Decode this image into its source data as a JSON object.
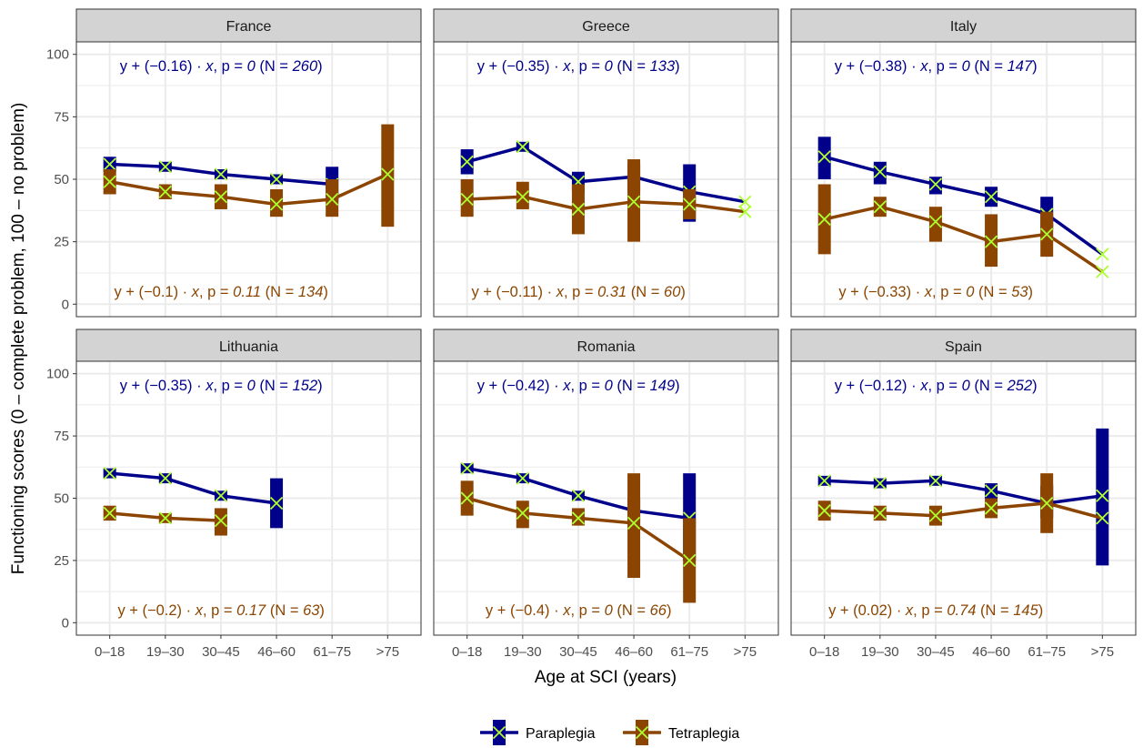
{
  "chart_data": {
    "type": "line",
    "xlabel": "Age at SCI (years)",
    "ylabel": "Functioning scores (0 – complete problem, 100 – no problem)",
    "categories": [
      "0–18",
      "19–30",
      "30–45",
      "46–60",
      "61–75",
      ">75"
    ],
    "ylim": [
      -5,
      105
    ],
    "yticks": [
      0,
      25,
      50,
      75,
      100
    ],
    "grid": true,
    "legend_position": "bottom",
    "legend": [
      {
        "key": "para",
        "label": "Paraplegia"
      },
      {
        "key": "tetra",
        "label": "Tetraplegia"
      }
    ],
    "colors": {
      "para": "#00008B",
      "tetra": "#8B4500",
      "marker": "#ADFF2F",
      "strip": "#D3D3D3",
      "grid": "#EBEBEB"
    },
    "panels": [
      {
        "title": "France",
        "series": [
          {
            "key": "para",
            "mean": [
              56,
              55,
              52,
              50,
              48,
              null
            ],
            "low": [
              53,
              53,
              50,
              48,
              41,
              null
            ],
            "high": [
              59,
              57,
              54,
              52,
              55,
              null
            ],
            "annotation": {
              "prefix": "y + (−0.16) · ",
              "x": "x",
              "p_text": ", p = ",
              "p": "0",
              "n_text": "  (N = ",
              "n": "260",
              "close": ")"
            }
          },
          {
            "key": "tetra",
            "mean": [
              49,
              45,
              43,
              40,
              42,
              52
            ],
            "low": [
              44,
              42,
              38,
              35,
              35,
              31
            ],
            "high": [
              54,
              48,
              48,
              46,
              50,
              72
            ],
            "annotation": {
              "prefix": "y + (−0.1) · ",
              "x": "x",
              "p_text": ", p = ",
              "p": "0.11",
              "n_text": "  (N = ",
              "n": "134",
              "close": ")"
            }
          }
        ]
      },
      {
        "title": "Greece",
        "series": [
          {
            "key": "para",
            "mean": [
              57,
              63,
              49,
              51,
              45,
              41
            ],
            "low": [
              52,
              61,
              45,
              45,
              33,
              null
            ],
            "high": [
              62,
              65,
              53,
              56,
              56,
              null
            ],
            "annotation": {
              "prefix": "y + (−0.35) · ",
              "x": "x",
              "p_text": ", p = ",
              "p": "0",
              "n_text": "  (N = ",
              "n": "133",
              "close": ")"
            }
          },
          {
            "key": "tetra",
            "mean": [
              42,
              43,
              38,
              41,
              40,
              37
            ],
            "low": [
              35,
              38,
              28,
              25,
              34,
              null
            ],
            "high": [
              50,
              49,
              48,
              58,
              46,
              null
            ],
            "annotation": {
              "prefix": "y + (−0.11) · ",
              "x": "x",
              "p_text": ", p = ",
              "p": "0.31",
              "n_text": "  (N = ",
              "n": "60",
              "close": ")"
            }
          }
        ]
      },
      {
        "title": "Italy",
        "series": [
          {
            "key": "para",
            "mean": [
              59,
              53,
              48,
              43,
              36,
              20
            ],
            "low": [
              50,
              48,
              44,
              39,
              30,
              null
            ],
            "high": [
              67,
              57,
              51,
              47,
              43,
              null
            ],
            "annotation": {
              "prefix": "y + (−0.38) · ",
              "x": "x",
              "p_text": ", p = ",
              "p": "0",
              "n_text": "  (N = ",
              "n": "147",
              "close": ")"
            }
          },
          {
            "key": "tetra",
            "mean": [
              34,
              39,
              33,
              25,
              28,
              13
            ],
            "low": [
              20,
              35,
              25,
              15,
              19,
              null
            ],
            "high": [
              48,
              43,
              39,
              36,
              37,
              null
            ],
            "annotation": {
              "prefix": "y + (−0.33) · ",
              "x": "x",
              "p_text": ", p = ",
              "p": "0",
              "n_text": "  (N = ",
              "n": "53",
              "close": ")"
            }
          }
        ]
      },
      {
        "title": "Lithuania",
        "series": [
          {
            "key": "para",
            "mean": [
              60,
              58,
              51,
              48,
              null,
              null
            ],
            "low": [
              58,
              56,
              49,
              38,
              null,
              null
            ],
            "high": [
              62,
              60,
              53,
              58,
              null,
              null
            ],
            "annotation": {
              "prefix": "y + (−0.35) · ",
              "x": "x",
              "p_text": ", p = ",
              "p": "0",
              "n_text": "  (N = ",
              "n": "152",
              "close": ")"
            }
          },
          {
            "key": "tetra",
            "mean": [
              44,
              42,
              41,
              null,
              null,
              null
            ],
            "low": [
              41,
              40,
              35,
              null,
              null,
              null
            ],
            "high": [
              47,
              44,
              46,
              null,
              null,
              null
            ],
            "annotation": {
              "prefix": "y + (−0.2) · ",
              "x": "x",
              "p_text": ", p = ",
              "p": "0.17",
              "n_text": "  (N = ",
              "n": "63",
              "close": ")"
            }
          }
        ]
      },
      {
        "title": "Romania",
        "series": [
          {
            "key": "para",
            "mean": [
              62,
              58,
              51,
              45,
              42,
              null
            ],
            "low": [
              60,
              56,
              49,
              40,
              25,
              null
            ],
            "high": [
              64,
              60,
              53,
              50,
              60,
              null
            ],
            "annotation": {
              "prefix": "y + (−0.42) · ",
              "x": "x",
              "p_text": ", p = ",
              "p": "0",
              "n_text": "  (N = ",
              "n": "149",
              "close": ")"
            }
          },
          {
            "key": "tetra",
            "mean": [
              50,
              44,
              42,
              40,
              25,
              null
            ],
            "low": [
              43,
              38,
              39,
              18,
              8,
              null
            ],
            "high": [
              57,
              49,
              46,
              60,
              42,
              null
            ],
            "annotation": {
              "prefix": "y + (−0.4) · ",
              "x": "x",
              "p_text": ", p = ",
              "p": "0",
              "n_text": "  (N = ",
              "n": "66",
              "close": ")"
            }
          }
        ]
      },
      {
        "title": "Spain",
        "series": [
          {
            "key": "para",
            "mean": [
              57,
              56,
              57,
              53,
              48,
              51
            ],
            "low": [
              55,
              54,
              55,
              50,
              42,
              23
            ],
            "high": [
              59,
              58,
              59,
              56,
              55,
              78
            ],
            "annotation": {
              "prefix": "y + (−0.12) · ",
              "x": "x",
              "p_text": ", p = ",
              "p": "0",
              "n_text": "  (N = ",
              "n": "252",
              "close": ")"
            }
          },
          {
            "key": "tetra",
            "mean": [
              45,
              44,
              43,
              46,
              48,
              42
            ],
            "low": [
              41,
              41,
              39,
              42,
              36,
              null
            ],
            "high": [
              49,
              47,
              47,
              50,
              60,
              null
            ],
            "annotation": {
              "prefix": "y + (0.02) · ",
              "x": "x",
              "p_text": ", p = ",
              "p": "0.74",
              "n_text": "  (N = ",
              "n": "145",
              "close": ")"
            }
          }
        ]
      }
    ]
  }
}
